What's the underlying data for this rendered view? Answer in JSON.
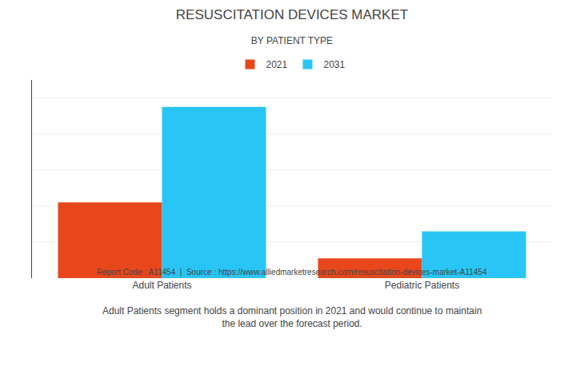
{
  "chart_data": {
    "type": "bar",
    "title": "RESUSCITATION DEVICES MARKET",
    "subtitle": "BY PATIENT TYPE",
    "categories": [
      "Adult Patients",
      "Pediatric Patients"
    ],
    "series": [
      {
        "name": "2021",
        "color": "#E8471C",
        "values": [
          4.2,
          1.1
        ]
      },
      {
        "name": "2031",
        "color": "#29C5F6",
        "values": [
          9.5,
          2.6
        ]
      }
    ],
    "ylim": [
      0,
      11
    ],
    "yticks": [
      0,
      2,
      4,
      6,
      8,
      10
    ],
    "grid": true,
    "legend": "top",
    "tick_labels": "x",
    "annotations": [
      "Adult Patients segment holds a dominant position in 2021 and would continue to maintain\nthe lead over the forecast period.",
      "Report Code : A11454  |  Source : https://www.alliedmarketresearch.com/resuscitation-devices-market-A11454"
    ]
  }
}
